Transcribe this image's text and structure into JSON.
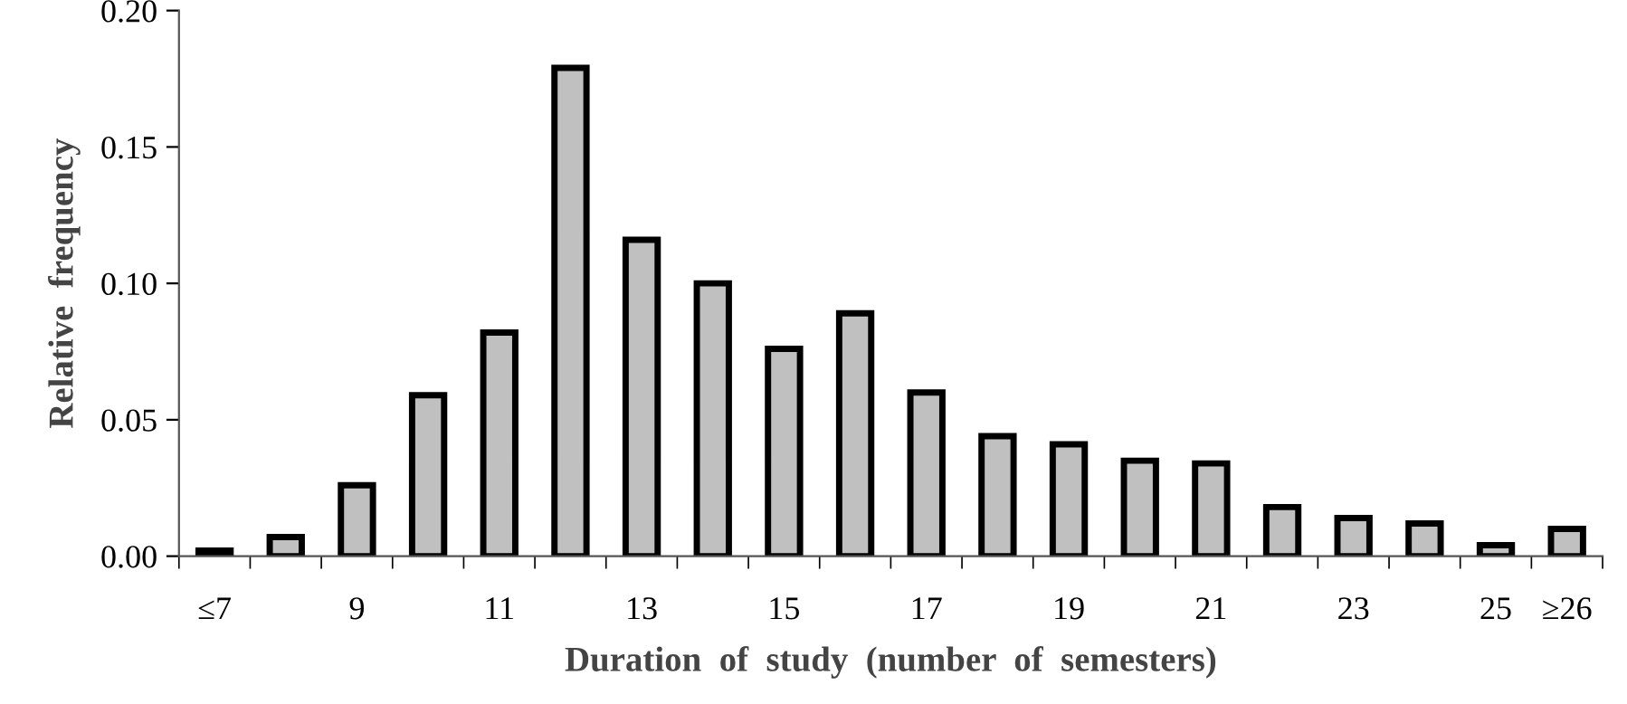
{
  "chart_data": {
    "type": "bar",
    "xlabel": "Duration  of  study  (number  of  semesters)",
    "ylabel": "Relative  frequency",
    "categories": [
      "≤7",
      null,
      "9",
      null,
      "11",
      null,
      "13",
      null,
      "15",
      null,
      "17",
      null,
      "19",
      null,
      "21",
      null,
      "23",
      null,
      "25",
      "≥26"
    ],
    "values": [
      0.002,
      0.007,
      0.026,
      0.059,
      0.082,
      0.179,
      0.116,
      0.1,
      0.076,
      0.089,
      0.06,
      0.044,
      0.041,
      0.035,
      0.034,
      0.018,
      0.014,
      0.012,
      0.004,
      0.01
    ],
    "color": "#c0c0c0",
    "ylim": [
      0,
      0.2
    ],
    "yticks": [
      {
        "value": 0,
        "label": "0.00"
      },
      {
        "value": 0.05,
        "label": "0.05"
      },
      {
        "value": 0.1,
        "label": "0.10"
      },
      {
        "value": 0.15,
        "label": "0.15"
      },
      {
        "value": 0.2,
        "label": "0.20"
      }
    ],
    "grid": false
  }
}
